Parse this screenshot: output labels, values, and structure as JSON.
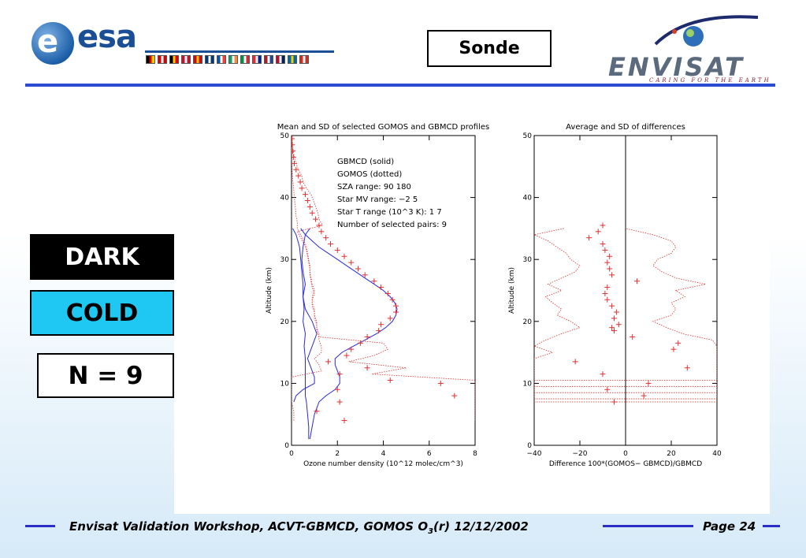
{
  "header": {
    "esa_logo_text": "esa",
    "sonde_label": "Sonde",
    "envisat_logo_text": "ENVISAT",
    "envisat_tagline": "CARING FOR THE EARTH",
    "flag_colors": [
      [
        "#000",
        "#d00",
        "#fc0"
      ],
      [
        "#d00",
        "#fff",
        "#d00"
      ],
      [
        "#000",
        "#fc0",
        "#d00"
      ],
      [
        "#c8102e",
        "#fff",
        "#c8102e"
      ],
      [
        "#c60b1e",
        "#ffc400",
        "#c60b1e"
      ],
      [
        "#003580",
        "#fff",
        "#003580"
      ],
      [
        "#0055a4",
        "#fff",
        "#ef4135"
      ],
      [
        "#169b62",
        "#fff",
        "#ff883e"
      ],
      [
        "#009246",
        "#fff",
        "#ce2b37"
      ],
      [
        "#ed2939",
        "#fff",
        "#00239c"
      ],
      [
        "#ae1c28",
        "#fff",
        "#21468b"
      ],
      [
        "#ba0c2f",
        "#fff",
        "#00205b"
      ],
      [
        "#006aa7",
        "#fecc00",
        "#006aa7"
      ],
      [
        "#d52b1e",
        "#fff",
        "#d52b1e"
      ]
    ]
  },
  "labels": {
    "dark": "DARK",
    "cold": "COLD",
    "n": "N = 9"
  },
  "footer": {
    "text_prefix": "Envisat Validation Workshop, ACVT-GBMCD,  GOMOS O",
    "subscript": "3",
    "text_suffix": "(r) 12/12/2002",
    "page_label": "Page",
    "page_number": "24"
  },
  "chart_data": [
    {
      "type": "line",
      "title": "Mean and SD of selected GOMOS and GBMCD profiles",
      "xlabel": "Ozone number density (10^12 molec/cm^3)",
      "ylabel": "Altitude (km)",
      "xlim": [
        0,
        8
      ],
      "ylim": [
        0,
        50
      ],
      "xticks": [
        0,
        2,
        4,
        6,
        8
      ],
      "yticks": [
        0,
        10,
        20,
        30,
        40,
        50
      ],
      "info_lines": [
        "GBMCD   (solid)",
        "GOMOS   (dotted)",
        "SZA range:    90   180",
        "Star MV range:    −2    5",
        "Star T range (10^3 K):   1    7",
        "Number of selected pairs:    9"
      ],
      "series": [
        {
          "name": "GBMCD",
          "style": "solid",
          "color": "#2a2ad8",
          "mean": {
            "alt": [
              1,
              3,
              5,
              7,
              8,
              9,
              10,
              11,
              12,
              13,
              14,
              15,
              16,
              17,
              18,
              19,
              20,
              21,
              22,
              23,
              24,
              25,
              26,
              27,
              28,
              29,
              30,
              31,
              32,
              33,
              34,
              35
            ],
            "val": [
              0.8,
              0.9,
              1.0,
              1.2,
              1.5,
              1.9,
              2.1,
              2.1,
              2.0,
              1.9,
              1.9,
              2.2,
              2.7,
              3.2,
              3.7,
              4.1,
              4.4,
              4.55,
              4.6,
              4.5,
              4.3,
              4.0,
              3.6,
              3.2,
              2.8,
              2.4,
              2.0,
              1.6,
              1.2,
              0.9,
              0.6,
              0.4
            ]
          },
          "sd_low": {
            "alt": [
              1,
              3,
              5,
              7,
              8,
              10,
              12,
              14,
              16,
              18,
              20,
              22,
              24,
              26,
              28,
              30,
              32,
              34,
              35
            ],
            "val": [
              0.75,
              0.75,
              0.7,
              0.65,
              0.6,
              0.6,
              0.6,
              0.6,
              0.55,
              0.6,
              0.5,
              0.55,
              0.5,
              0.5,
              0.45,
              0.4,
              0.35,
              0.2,
              0.05
            ]
          },
          "sd_high": {
            "alt": [
              7,
              8,
              9,
              10,
              11,
              12,
              13,
              14,
              15,
              16,
              17,
              18,
              20,
              22,
              24,
              26,
              28,
              30,
              32,
              34,
              35
            ],
            "val": [
              0.1,
              0.2,
              0.5,
              1.0,
              1.0,
              0.9,
              0.8,
              0.7,
              0.8,
              0.9,
              1.0,
              1.1,
              0.9,
              0.6,
              0.5,
              0.6,
              0.5,
              0.45,
              0.5,
              0.6,
              0.8
            ]
          }
        },
        {
          "name": "GOMOS",
          "style": "dotted",
          "color": "#e03030",
          "mean": {
            "alt": [
              4,
              5.5,
              7,
              8,
              9,
              10,
              10.5,
              11.5,
              12.5,
              13.5,
              14.5,
              15.5,
              16.5,
              17.5,
              18.5,
              19.5,
              20.5,
              21.5,
              22.5,
              23.5,
              24.5,
              25.5,
              26.5,
              27.5,
              28.5,
              29.5,
              30.5,
              31.5,
              32.5,
              33.5,
              34.5,
              35.5,
              36.5,
              37.5,
              38.5,
              39.5,
              40.5,
              41.5,
              42.5,
              43.5,
              44.5,
              45.5,
              46.5,
              47.5,
              48.5,
              49.5
            ],
            "val": [
              2.3,
              1.1,
              2.1,
              7.1,
              2.0,
              6.5,
              4.3,
              2.1,
              3.3,
              1.6,
              2.4,
              2.6,
              3.0,
              3.3,
              3.8,
              3.9,
              4.3,
              4.55,
              4.55,
              4.4,
              4.2,
              3.9,
              3.6,
              3.2,
              2.9,
              2.6,
              2.3,
              2.0,
              1.7,
              1.5,
              1.3,
              1.2,
              1.05,
              0.9,
              0.8,
              0.7,
              0.6,
              0.45,
              0.38,
              0.3,
              0.2,
              0.12,
              0.08,
              0.05,
              0.03,
              0.02
            ]
          },
          "sd_low": {
            "alt": [
              4,
              5.5,
              7,
              8,
              9,
              10,
              11,
              12,
              13,
              14,
              15,
              16,
              17,
              18,
              19,
              20,
              21,
              22,
              23,
              24,
              25,
              26,
              27,
              28,
              29,
              30,
              31,
              32,
              33,
              34,
              35,
              36,
              37,
              38,
              39,
              40,
              41,
              42,
              43,
              44,
              45,
              46,
              47,
              48,
              49,
              50
            ],
            "val": [
              0.1,
              0.1,
              0.0,
              0.0,
              0.0,
              0.0,
              0.0,
              1.3,
              1.2,
              1.0,
              1.3,
              1.3,
              1.2,
              1.2,
              1.1,
              1.1,
              1.0,
              1.0,
              0.9,
              0.9,
              1.0,
              0.9,
              0.85,
              0.8,
              0.8,
              0.75,
              0.7,
              0.65,
              0.55,
              0.4,
              0.25,
              0.25,
              0.2,
              0.18,
              0.15,
              0.12,
              0.1,
              0.08,
              0.05,
              0.03,
              0.02,
              0.01,
              0.01,
              0.0,
              0.0,
              0.0
            ]
          },
          "sd_high": {
            "alt": [
              4,
              5.5,
              7,
              8,
              9,
              10,
              10.5,
              11.5,
              12.5,
              13.5,
              14.5,
              15.5,
              16.5,
              17.5,
              18.5,
              19.5,
              20.5,
              21.5,
              22.5,
              23.5,
              24.5,
              25.5,
              26.5,
              27.5,
              28.5,
              29.5,
              30.5,
              31.5,
              32.5,
              33.5,
              34.5,
              35.5,
              36.5,
              37.5,
              38.5,
              39.5,
              40.5,
              41.5,
              42.5,
              43.5,
              44.5,
              45.5,
              46.5,
              47.5,
              48.5,
              49.5
            ],
            "val": [
              8.0,
              8.0,
              8.0,
              8.0,
              8.0,
              8.0,
              8.0,
              3.5,
              5.0,
              2.5,
              3.6,
              4.2,
              4.0,
              1.2,
              1.1,
              1.1,
              1.0,
              1.0,
              0.9,
              0.9,
              1.0,
              0.9,
              0.85,
              0.8,
              0.8,
              0.75,
              0.7,
              0.65,
              0.55,
              0.4,
              0.25,
              1.35,
              1.2,
              1.15,
              1.05,
              0.95,
              0.85,
              0.65,
              0.5,
              0.45,
              0.3,
              0.2,
              0.12,
              0.08,
              0.05,
              0.03
            ]
          }
        }
      ]
    },
    {
      "type": "line",
      "title": "Average and SD of differences",
      "xlabel": "Difference 100*(GOMOS− GBMCD)/GBMCD",
      "ylabel": "Altitude (km)",
      "xlim": [
        -40,
        40
      ],
      "ylim": [
        0,
        50
      ],
      "xticks": [
        -40,
        -20,
        0,
        20,
        40
      ],
      "yticks": [
        0,
        10,
        20,
        30,
        40,
        50
      ],
      "series": [
        {
          "name": "Average difference",
          "style": "markers",
          "color": "#e03030",
          "alt": [
            7,
            8,
            9,
            10,
            11.5,
            12.5,
            13.5,
            15.5,
            16.5,
            17.5,
            18.5,
            19,
            19.5,
            20.5,
            21.5,
            22.5,
            23.5,
            24.5,
            25.5,
            26.5,
            27.5,
            28.5,
            29.5,
            30.5,
            31.5,
            32.5,
            33.5,
            34.5,
            35.5
          ],
          "val": [
            -5,
            8,
            -8,
            10,
            -10,
            27,
            -22,
            21,
            23,
            3,
            -5,
            -6,
            -3,
            -5,
            -4,
            -6,
            -8,
            -9,
            -8,
            5,
            -6,
            -7,
            -8,
            -7,
            -9,
            -10,
            -16,
            -12,
            -10
          ]
        },
        {
          "name": "SD low",
          "style": "dotted",
          "color": "#e03030",
          "alt": [
            7,
            8,
            9,
            10,
            11,
            12,
            13,
            14,
            15,
            16,
            17,
            18,
            19,
            20,
            21,
            22,
            23,
            24,
            25,
            26,
            27,
            28,
            29,
            30,
            31,
            32,
            33,
            34,
            35
          ],
          "val": [
            -40,
            -40,
            -40,
            -40,
            -40,
            -40,
            -40,
            -40,
            -32,
            -40,
            -35,
            -28,
            -20,
            -24,
            -30,
            -28,
            -32,
            -35,
            -28,
            -34,
            -28,
            -22,
            -20,
            -24,
            -26,
            -30,
            -34,
            -40,
            -27
          ]
        },
        {
          "name": "SD high",
          "style": "dotted",
          "color": "#e03030",
          "alt": [
            7,
            8,
            9,
            10,
            11,
            12,
            13,
            14,
            15,
            16,
            17,
            18,
            19,
            20,
            21,
            22,
            23,
            24,
            25,
            26,
            27,
            28,
            29,
            30,
            31,
            32,
            33,
            34,
            35
          ],
          "val": [
            40,
            40,
            40,
            40,
            40,
            40,
            40,
            40,
            40,
            40,
            38,
            25,
            18,
            12,
            20,
            22,
            20,
            26,
            22,
            35,
            22,
            16,
            12,
            14,
            20,
            22,
            20,
            12,
            0
          ]
        }
      ]
    }
  ]
}
